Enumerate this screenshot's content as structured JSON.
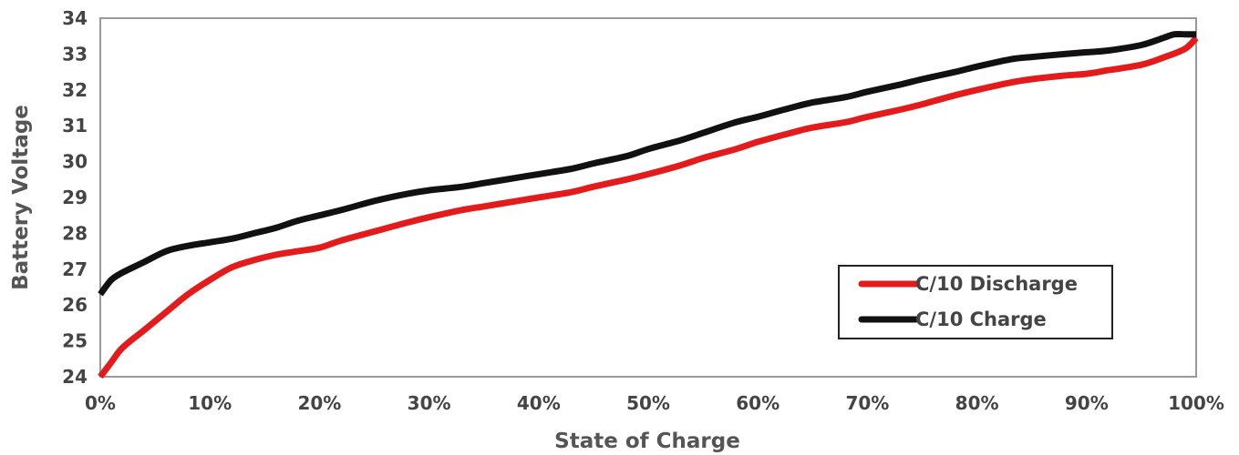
{
  "chart_data": {
    "type": "line",
    "xlabel": "State of Charge",
    "ylabel": "Battery Voltage",
    "xlim": [
      0,
      100
    ],
    "ylim": [
      24,
      34
    ],
    "x_ticks": [
      0,
      10,
      20,
      30,
      40,
      50,
      60,
      70,
      80,
      90,
      100
    ],
    "x_tick_labels": [
      "0%",
      "10%",
      "20%",
      "30%",
      "40%",
      "50%",
      "60%",
      "70%",
      "80%",
      "90%",
      "100%"
    ],
    "y_ticks": [
      24,
      25,
      26,
      27,
      28,
      29,
      30,
      31,
      32,
      33,
      34
    ],
    "y_tick_labels": [
      "24",
      "25",
      "26",
      "27",
      "28",
      "29",
      "30",
      "31",
      "32",
      "33",
      "34"
    ],
    "grid": false,
    "legend_position": "bottom-right",
    "series": [
      {
        "name": "C/10 Discharge",
        "color": "#e31b1b",
        "x": [
          0,
          1,
          2,
          4,
          6,
          8,
          10,
          12,
          14,
          16,
          18,
          20,
          22,
          25,
          28,
          30,
          33,
          35,
          38,
          40,
          43,
          45,
          48,
          50,
          53,
          55,
          58,
          60,
          63,
          65,
          68,
          70,
          73,
          75,
          78,
          80,
          83,
          85,
          88,
          90,
          92,
          95,
          97,
          99,
          100
        ],
        "y": [
          24.0,
          24.4,
          24.8,
          25.3,
          25.8,
          26.3,
          26.7,
          27.05,
          27.25,
          27.4,
          27.5,
          27.6,
          27.8,
          28.05,
          28.3,
          28.45,
          28.65,
          28.75,
          28.9,
          29.0,
          29.15,
          29.3,
          29.5,
          29.65,
          29.9,
          30.1,
          30.35,
          30.55,
          30.8,
          30.95,
          31.1,
          31.25,
          31.45,
          31.6,
          31.85,
          32.0,
          32.2,
          32.3,
          32.4,
          32.45,
          32.55,
          32.7,
          32.9,
          33.15,
          33.45
        ]
      },
      {
        "name": "C/10 Charge",
        "color": "#111111",
        "x": [
          0,
          1,
          2,
          4,
          6,
          8,
          10,
          12,
          14,
          16,
          18,
          20,
          22,
          25,
          28,
          30,
          33,
          35,
          38,
          40,
          43,
          45,
          48,
          50,
          53,
          55,
          58,
          60,
          63,
          65,
          68,
          70,
          73,
          75,
          78,
          80,
          83,
          85,
          88,
          90,
          92,
          95,
          97,
          98,
          99,
          100
        ],
        "y": [
          26.3,
          26.7,
          26.9,
          27.2,
          27.5,
          27.65,
          27.75,
          27.85,
          28.0,
          28.15,
          28.35,
          28.5,
          28.65,
          28.9,
          29.1,
          29.2,
          29.3,
          29.4,
          29.55,
          29.65,
          29.8,
          29.95,
          30.15,
          30.35,
          30.6,
          30.8,
          31.1,
          31.25,
          31.5,
          31.65,
          31.8,
          31.95,
          32.15,
          32.3,
          32.5,
          32.65,
          32.85,
          32.92,
          33.0,
          33.05,
          33.1,
          33.25,
          33.45,
          33.55,
          33.55,
          33.55
        ]
      }
    ]
  }
}
